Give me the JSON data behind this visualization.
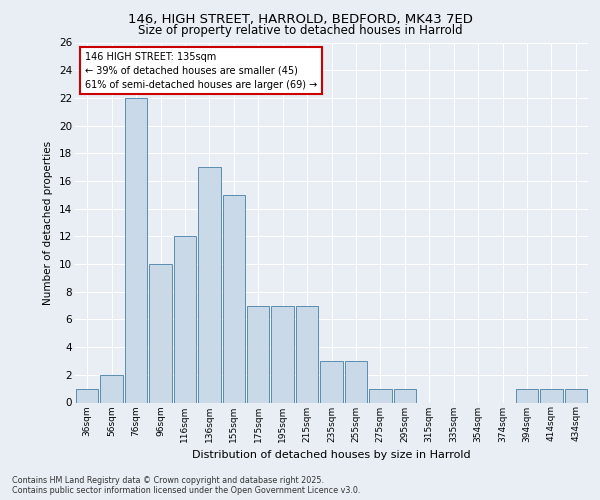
{
  "title_line1": "146, HIGH STREET, HARROLD, BEDFORD, MK43 7ED",
  "title_line2": "Size of property relative to detached houses in Harrold",
  "xlabel": "Distribution of detached houses by size in Harrold",
  "ylabel": "Number of detached properties",
  "categories": [
    "36sqm",
    "56sqm",
    "76sqm",
    "96sqm",
    "116sqm",
    "136sqm",
    "155sqm",
    "175sqm",
    "195sqm",
    "215sqm",
    "235sqm",
    "255sqm",
    "275sqm",
    "295sqm",
    "315sqm",
    "335sqm",
    "354sqm",
    "374sqm",
    "394sqm",
    "414sqm",
    "434sqm"
  ],
  "values": [
    1,
    2,
    22,
    10,
    12,
    17,
    15,
    7,
    7,
    7,
    3,
    3,
    1,
    1,
    0,
    0,
    0,
    0,
    1,
    1,
    1
  ],
  "bar_color": "#c9d9e8",
  "bar_edge_color": "#5b8db0",
  "property_label": "146 HIGH STREET: 135sqm",
  "annotation_line2": "← 39% of detached houses are smaller (45)",
  "annotation_line3": "61% of semi-detached houses are larger (69) →",
  "annotation_box_color": "#ffffff",
  "annotation_box_edge_color": "#cc0000",
  "ylim": [
    0,
    26
  ],
  "yticks": [
    0,
    2,
    4,
    6,
    8,
    10,
    12,
    14,
    16,
    18,
    20,
    22,
    24,
    26
  ],
  "background_color": "#e8eef4",
  "plot_bg_color": "#e8eef4",
  "grid_color": "#ffffff",
  "footnote_line1": "Contains HM Land Registry data © Crown copyright and database right 2025.",
  "footnote_line2": "Contains public sector information licensed under the Open Government Licence v3.0."
}
